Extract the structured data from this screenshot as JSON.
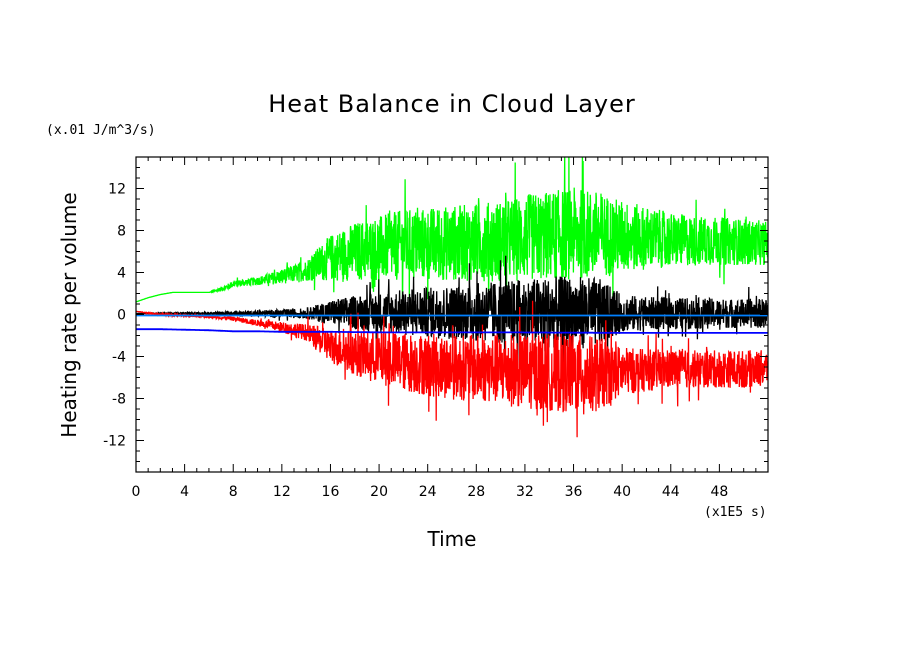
{
  "chart_data": {
    "type": "line",
    "title": "Heat Balance in Cloud Layer",
    "xlabel": "Time",
    "ylabel": "Heating rate per volume",
    "x_unit": "(x1E5 s)",
    "y_unit": "(x.01 J/m^3/s)",
    "xlim": [
      0,
      52
    ],
    "ylim": [
      -15,
      15
    ],
    "xticks": [
      0,
      4,
      8,
      12,
      16,
      20,
      24,
      28,
      32,
      36,
      40,
      44,
      48
    ],
    "yticks": [
      -12,
      -8,
      -4,
      0,
      4,
      8,
      12
    ],
    "grid": false,
    "series": [
      {
        "color": "#00ff00",
        "x": [
          0,
          1,
          2,
          3,
          4,
          5,
          6,
          7,
          8,
          10,
          12,
          14,
          16,
          18,
          20,
          22,
          24,
          26,
          28,
          30,
          32,
          34,
          36,
          38,
          40,
          42,
          44,
          46,
          48,
          50,
          52
        ],
        "mean": [
          1.2,
          1.6,
          1.9,
          2.1,
          2.1,
          2.1,
          2.1,
          2.4,
          2.9,
          3.2,
          3.6,
          4.2,
          5.4,
          6.0,
          6.3,
          6.6,
          6.7,
          6.8,
          6.9,
          7.0,
          7.3,
          7.5,
          7.7,
          7.6,
          7.4,
          7.3,
          7.1,
          7.0,
          7.0,
          6.9,
          6.8
        ],
        "amp": [
          0,
          0,
          0,
          0,
          0,
          0,
          0,
          0.2,
          0.3,
          0.4,
          0.7,
          1.0,
          2.2,
          2.8,
          3.1,
          3.4,
          3.5,
          3.6,
          3.7,
          3.9,
          4.1,
          4.3,
          4.4,
          4.2,
          3.5,
          3.0,
          2.6,
          2.4,
          2.3,
          2.2,
          2.1
        ]
      },
      {
        "color": "#000000",
        "x": [
          0,
          2,
          4,
          6,
          8,
          10,
          12,
          14,
          16,
          18,
          20,
          22,
          24,
          26,
          28,
          30,
          32,
          34,
          36,
          38,
          40,
          42,
          44,
          46,
          48,
          50,
          52
        ],
        "mean": [
          0.1,
          0.1,
          0.1,
          0.1,
          0.1,
          0.1,
          0.1,
          0.1,
          0.2,
          0.2,
          0.2,
          0.2,
          0.2,
          0.2,
          0.2,
          0.2,
          0.2,
          0.2,
          0.2,
          0.2,
          0.1,
          0.1,
          0.1,
          0.1,
          0.1,
          0.1,
          0.1
        ],
        "amp": [
          0,
          0.05,
          0.1,
          0.15,
          0.2,
          0.3,
          0.4,
          0.5,
          1.2,
          1.6,
          1.9,
          2.2,
          2.4,
          2.6,
          2.8,
          3.0,
          3.2,
          3.4,
          3.5,
          3.3,
          1.8,
          1.6,
          1.5,
          1.5,
          1.4,
          1.4,
          1.4
        ]
      },
      {
        "color": "#ff0000",
        "x": [
          0,
          2,
          4,
          6,
          8,
          10,
          12,
          14,
          16,
          18,
          20,
          22,
          24,
          26,
          28,
          30,
          32,
          34,
          36,
          38,
          40,
          42,
          44,
          46,
          48,
          50,
          52
        ],
        "mean": [
          0.3,
          0.0,
          -0.1,
          -0.2,
          -0.4,
          -0.8,
          -1.2,
          -1.7,
          -3.0,
          -3.7,
          -4.1,
          -4.5,
          -4.8,
          -5.0,
          -5.1,
          -5.2,
          -5.4,
          -5.5,
          -5.6,
          -5.7,
          -5.4,
          -5.3,
          -5.2,
          -5.2,
          -5.2,
          -5.2,
          -5.1
        ],
        "amp": [
          0,
          0.1,
          0.1,
          0.1,
          0.2,
          0.3,
          0.5,
          0.8,
          1.6,
          2.1,
          2.5,
          2.8,
          3.0,
          3.1,
          3.2,
          3.4,
          3.6,
          3.7,
          3.8,
          3.6,
          2.3,
          2.0,
          1.9,
          1.8,
          1.8,
          1.8,
          1.7
        ]
      },
      {
        "color": "#0000ff",
        "x": [
          0,
          2,
          4,
          6,
          7,
          8,
          10,
          12,
          16,
          20,
          30,
          40,
          52
        ],
        "mean": [
          -1.4,
          -1.4,
          -1.45,
          -1.5,
          -1.55,
          -1.6,
          -1.6,
          -1.65,
          -1.65,
          -1.7,
          -1.7,
          -1.75,
          -1.75
        ],
        "amp": [
          0,
          0,
          0,
          0,
          0,
          0,
          0,
          0,
          0,
          0,
          0,
          0,
          0
        ]
      },
      {
        "color": "#0080ff",
        "x": [
          0,
          52
        ],
        "mean": [
          -0.1,
          -0.1
        ],
        "amp": [
          0,
          0
        ]
      }
    ]
  }
}
